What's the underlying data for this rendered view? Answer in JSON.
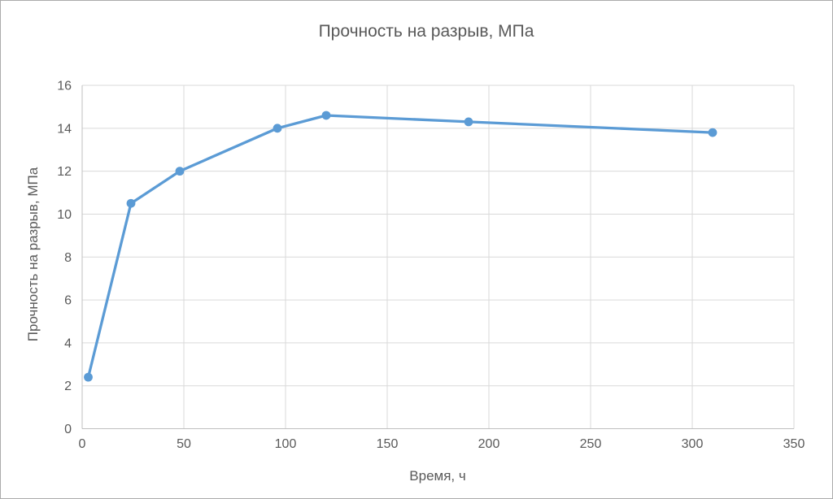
{
  "chart_data": {
    "type": "line",
    "title": "Прочность на разрыв, МПа",
    "xlabel": "Время, ч",
    "ylabel": "Прочность на разрыв, МПа",
    "x": [
      3,
      24,
      48,
      96,
      120,
      190,
      310
    ],
    "y": [
      2.4,
      10.5,
      12.0,
      14.0,
      14.6,
      14.3,
      13.8
    ],
    "xlim": [
      0,
      350
    ],
    "ylim": [
      0,
      16
    ],
    "x_ticks": [
      0,
      50,
      100,
      150,
      200,
      250,
      300,
      350
    ],
    "y_ticks": [
      0,
      2,
      4,
      6,
      8,
      10,
      12,
      14,
      16
    ],
    "grid": true,
    "legend": false,
    "marker": "circle",
    "line_color": "#5B9BD5"
  },
  "colors": {
    "series": "#5B9BD5",
    "grid": "#D9D9D9",
    "axis": "#BFBFBF",
    "text": "#595959",
    "frame_border": "#ABABAB",
    "background": "#FFFFFF"
  }
}
